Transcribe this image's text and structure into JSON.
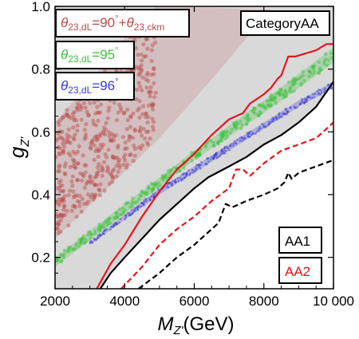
{
  "chart_data": {
    "type": "line",
    "xlabel": "M_{Z'}(GeV)",
    "ylabel": "g_{Z'}",
    "xlim": [
      2000,
      10000
    ],
    "ylim": [
      0.1,
      1.0
    ],
    "xticks": [
      "2000",
      "4000",
      "6000",
      "8000",
      "10 000"
    ],
    "xtick_values": [
      2000,
      4000,
      6000,
      8000,
      10000
    ],
    "yticks": [
      "0.2",
      "0.4",
      "0.6",
      "0.8",
      "1.0"
    ],
    "ytick_values": [
      0.2,
      0.4,
      0.6,
      0.8,
      1.0
    ],
    "category_label": "CategoryAA",
    "legend": [
      {
        "label": "AA1",
        "color": "#000000",
        "style": "solid"
      },
      {
        "label": "AA2",
        "color": "#e8141b",
        "style": "dashed"
      }
    ],
    "bands": [
      {
        "label_parts": [
          "θ",
          "23,dL",
          "=90",
          "°",
          "+θ",
          "23,ckm"
        ],
        "color": "#b94a4a",
        "lower": [
          [
            2000,
            0.26
          ],
          [
            3500,
            0.42
          ],
          [
            5000,
            0.58
          ],
          [
            6600,
            0.78
          ],
          [
            8200,
            0.99
          ]
        ],
        "upper": [
          [
            2000,
            0.63
          ],
          [
            3000,
            0.76
          ],
          [
            4000,
            0.9
          ],
          [
            4900,
            1.0
          ]
        ]
      },
      {
        "label_parts": [
          "θ",
          "23,dL",
          "=95",
          "°"
        ],
        "color": "#3cc23c",
        "lower": [
          [
            2000,
            0.17
          ],
          [
            4000,
            0.34
          ],
          [
            6000,
            0.51
          ],
          [
            8000,
            0.66
          ],
          [
            10000,
            0.82
          ]
        ],
        "upper": [
          [
            2000,
            0.2
          ],
          [
            4000,
            0.37
          ],
          [
            6000,
            0.54
          ],
          [
            8000,
            0.7
          ],
          [
            10000,
            0.87
          ]
        ]
      },
      {
        "label_parts": [
          "θ",
          "23,dL",
          "=96",
          "°"
        ],
        "color": "#3a3ad6",
        "lower": [
          [
            3000,
            0.24
          ],
          [
            5000,
            0.4
          ],
          [
            7000,
            0.54
          ],
          [
            9000,
            0.68
          ],
          [
            10000,
            0.74
          ]
        ],
        "upper": [
          [
            3000,
            0.25
          ],
          [
            5000,
            0.42
          ],
          [
            7000,
            0.56
          ],
          [
            9000,
            0.7
          ],
          [
            10000,
            0.76
          ]
        ]
      }
    ],
    "series": [
      {
        "id": "aa1-solid",
        "color": "#000000",
        "style": "solid",
        "width": 2.2,
        "points": [
          [
            3300,
            0.1
          ],
          [
            3600,
            0.15
          ],
          [
            4000,
            0.2
          ],
          [
            4500,
            0.26
          ],
          [
            5000,
            0.32
          ],
          [
            5500,
            0.37
          ],
          [
            6000,
            0.42
          ],
          [
            6400,
            0.455
          ],
          [
            7000,
            0.49
          ],
          [
            7500,
            0.52
          ],
          [
            8000,
            0.56
          ],
          [
            8500,
            0.59
          ],
          [
            9000,
            0.63
          ],
          [
            9500,
            0.68
          ],
          [
            10000,
            0.76
          ]
        ]
      },
      {
        "id": "aa2-solid",
        "color": "#e8141b",
        "style": "solid",
        "width": 2.2,
        "points": [
          [
            3200,
            0.1
          ],
          [
            3600,
            0.18
          ],
          [
            4000,
            0.24
          ],
          [
            4500,
            0.33
          ],
          [
            5000,
            0.41
          ],
          [
            5500,
            0.48
          ],
          [
            6000,
            0.53
          ],
          [
            6500,
            0.59
          ],
          [
            7000,
            0.64
          ],
          [
            7400,
            0.66
          ],
          [
            7600,
            0.69
          ],
          [
            8000,
            0.72
          ],
          [
            8200,
            0.74
          ],
          [
            8400,
            0.77
          ],
          [
            8500,
            0.78
          ],
          [
            8700,
            0.84
          ],
          [
            8900,
            0.84
          ],
          [
            9200,
            0.85
          ],
          [
            9500,
            0.86
          ],
          [
            9800,
            0.88
          ],
          [
            10000,
            0.88
          ]
        ]
      },
      {
        "id": "aa1-dashed",
        "color": "#000000",
        "style": "dashed",
        "width": 2.2,
        "points": [
          [
            4400,
            0.1
          ],
          [
            5000,
            0.15
          ],
          [
            5500,
            0.2
          ],
          [
            6000,
            0.24
          ],
          [
            6500,
            0.29
          ],
          [
            6700,
            0.31
          ],
          [
            6900,
            0.37
          ],
          [
            7100,
            0.36
          ],
          [
            7500,
            0.38
          ],
          [
            8000,
            0.4
          ],
          [
            8400,
            0.42
          ],
          [
            8600,
            0.44
          ],
          [
            8700,
            0.47
          ],
          [
            8800,
            0.45
          ],
          [
            9000,
            0.47
          ],
          [
            9500,
            0.49
          ],
          [
            10000,
            0.51
          ]
        ]
      },
      {
        "id": "aa2-dashed",
        "color": "#e8141b",
        "style": "dashed",
        "width": 2.2,
        "points": [
          [
            3900,
            0.1
          ],
          [
            4500,
            0.17
          ],
          [
            5000,
            0.24
          ],
          [
            5500,
            0.29
          ],
          [
            6000,
            0.33
          ],
          [
            6500,
            0.38
          ],
          [
            7000,
            0.42
          ],
          [
            7200,
            0.48
          ],
          [
            7400,
            0.48
          ],
          [
            7600,
            0.46
          ],
          [
            8000,
            0.5
          ],
          [
            8500,
            0.54
          ],
          [
            9000,
            0.56
          ],
          [
            9500,
            0.58
          ],
          [
            10000,
            0.63
          ]
        ]
      }
    ],
    "excluded_region_color": "#d9d9d9"
  }
}
